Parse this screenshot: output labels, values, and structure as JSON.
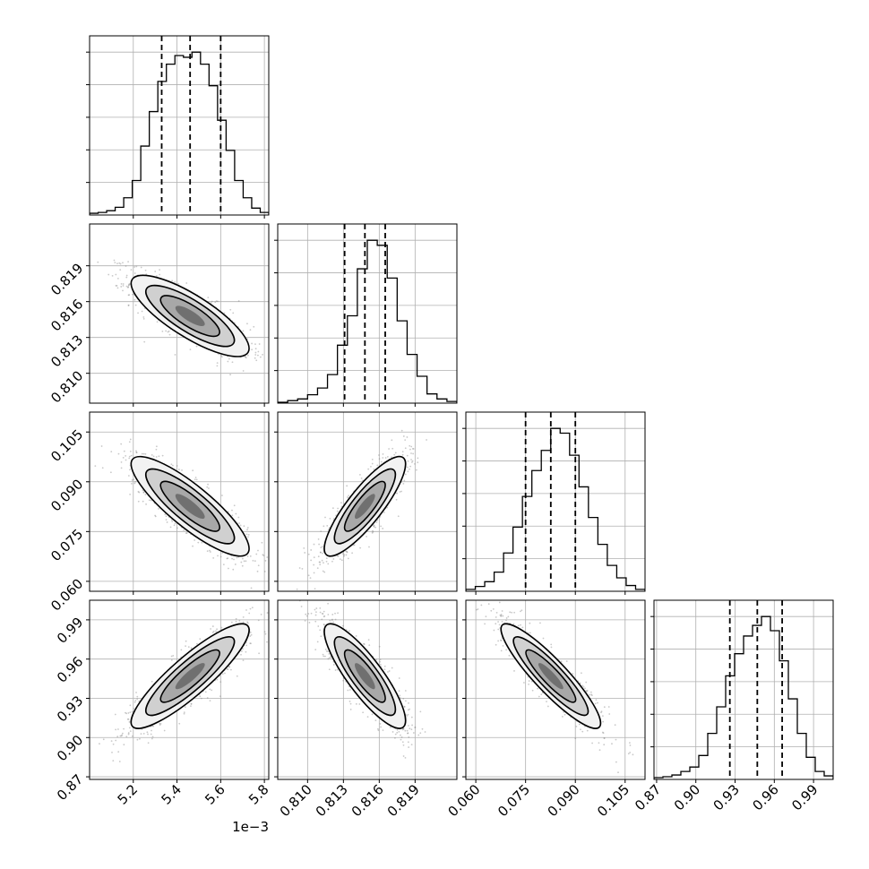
{
  "chart_data": {
    "type": "corner",
    "n_params": 4,
    "parameters": [
      {
        "range": [
          5.0,
          5.82
        ],
        "ticks": [
          5.2,
          5.4,
          5.6,
          5.8
        ],
        "tick_labels": [
          "5.2",
          "5.4",
          "5.6",
          "5.8"
        ],
        "offset_text": "1e−3",
        "quantiles": [
          5.33,
          5.46,
          5.6
        ],
        "hist_edges": [
          5.0,
          5.82
        ],
        "hist_counts": [
          2,
          3,
          5,
          9,
          20,
          40,
          80,
          120,
          155,
          175,
          185,
          183,
          189,
          175,
          150,
          110,
          75,
          40,
          20,
          8,
          3
        ]
      },
      {
        "range": [
          0.8075,
          0.8225
        ],
        "ticks": [
          0.81,
          0.813,
          0.816,
          0.819
        ],
        "tick_labels": [
          "0.810",
          "0.813",
          "0.816",
          "0.819"
        ],
        "quantiles": [
          0.8131,
          0.8148,
          0.8165
        ],
        "hist_edges": [
          0.8075,
          0.8225
        ],
        "hist_counts": [
          1,
          3,
          5,
          10,
          18,
          34,
          69,
          104,
          160,
          194,
          188,
          149,
          98,
          58,
          32,
          11,
          5,
          2
        ]
      },
      {
        "range": [
          0.057,
          0.111
        ],
        "ticks": [
          0.06,
          0.075,
          0.09,
          0.105
        ],
        "tick_labels": [
          "0.060",
          "0.075",
          "0.090",
          "0.105"
        ],
        "quantiles": [
          0.075,
          0.0826,
          0.09
        ],
        "hist_edges": [
          0.057,
          0.111
        ],
        "hist_counts": [
          2,
          5,
          10,
          20,
          40,
          67,
          99,
          126,
          147,
          170,
          165,
          142,
          109,
          77,
          49,
          27,
          14,
          6,
          2
        ]
      },
      {
        "range": [
          0.868,
          1.005
        ],
        "ticks": [
          0.87,
          0.9,
          0.93,
          0.96,
          0.99
        ],
        "tick_labels": [
          "0.87",
          "0.90",
          "0.93",
          "0.96",
          "0.99"
        ],
        "quantiles": [
          0.926,
          0.947,
          0.966
        ],
        "hist_edges": [
          0.868,
          1.005
        ],
        "hist_counts": [
          2,
          3,
          5,
          9,
          14,
          27,
          52,
          82,
          117,
          142,
          162,
          174,
          184,
          168,
          134,
          91,
          52,
          25,
          9,
          4
        ]
      }
    ],
    "correlations": [
      [
        1,
        -0.8,
        -0.85,
        0.88
      ],
      [
        -0.8,
        1,
        0.85,
        -0.85
      ],
      [
        -0.85,
        0.85,
        1,
        -0.9
      ],
      [
        0.88,
        -0.85,
        -0.9,
        1
      ]
    ],
    "contour_levels_sigma": [
      0.5,
      1.0,
      1.5,
      2.0
    ],
    "grid": true,
    "colors": {
      "axes": "#000000",
      "grid": "#b0b0b0",
      "points": "#888888",
      "contour": "#000000"
    }
  }
}
